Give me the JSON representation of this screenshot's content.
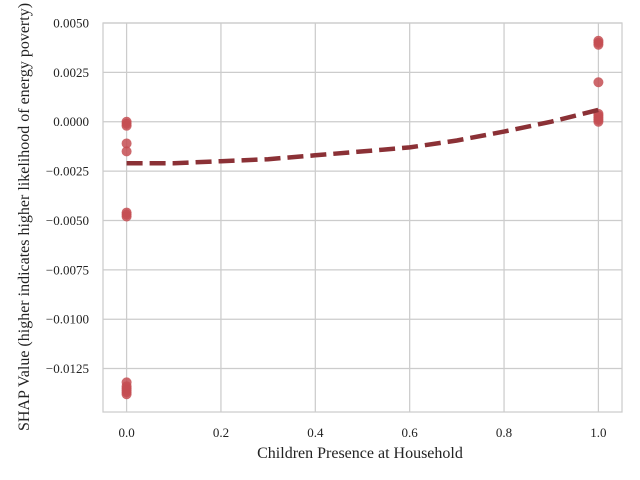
{
  "chart_data": {
    "type": "scatter",
    "title": "",
    "xlabel": "Children Presence at Household",
    "ylabel": "SHAP Value (higher indicates higher likelihood of energy poverty)",
    "xlim": [
      -0.05,
      1.05
    ],
    "ylim": [
      -0.0147,
      0.005
    ],
    "xticks": [
      0.0,
      0.2,
      0.4,
      0.6,
      0.8,
      1.0
    ],
    "xtick_labels": [
      "0.0",
      "0.2",
      "0.4",
      "0.6",
      "0.8",
      "1.0"
    ],
    "yticks": [
      0.005,
      0.0025,
      0.0,
      -0.0025,
      -0.005,
      -0.0075,
      -0.01,
      -0.0125
    ],
    "ytick_labels": [
      "0.0050",
      "0.0025",
      "0.0000",
      "−0.0025",
      "−0.0050",
      "−0.0075",
      "−0.0100",
      "−0.0125"
    ],
    "grid": true,
    "points": {
      "x": [
        0,
        0,
        0,
        0,
        0,
        0,
        0,
        0,
        0,
        0,
        0,
        0,
        0,
        0,
        1,
        1,
        1,
        1,
        1,
        1,
        1,
        1,
        1
      ],
      "y": [
        -0.0001,
        0.0,
        -0.0002,
        -0.0011,
        -0.0015,
        -0.0046,
        -0.0047,
        -0.0048,
        -0.0132,
        -0.0134,
        -0.0135,
        -0.0136,
        -0.0137,
        -0.0138,
        0.0041,
        0.004,
        0.0039,
        0.002,
        0.0004,
        0.0003,
        0.0002,
        0.0001,
        0.0
      ]
    },
    "trend": {
      "x": [
        0.0,
        0.1,
        0.2,
        0.3,
        0.4,
        0.5,
        0.6,
        0.7,
        0.8,
        0.9,
        1.0
      ],
      "y": [
        -0.0021,
        -0.0021,
        -0.002,
        -0.0019,
        -0.0017,
        -0.0015,
        -0.0013,
        -0.00095,
        -0.0005,
        0.0,
        0.0006
      ]
    },
    "colors": {
      "points": "#c44e52",
      "trend": "#8b3136",
      "grid": "#cccccc",
      "axes": "#cccccc"
    }
  }
}
